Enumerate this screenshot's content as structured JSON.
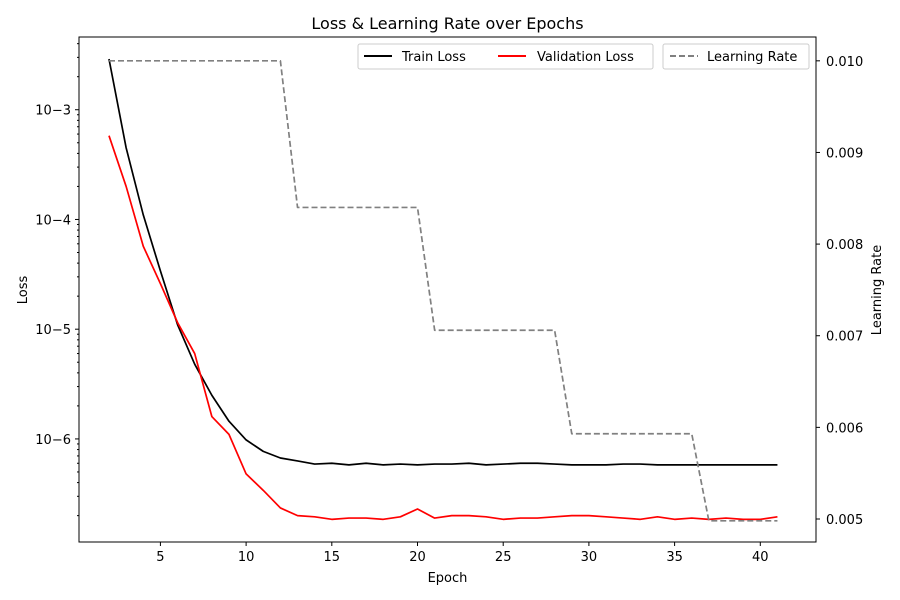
{
  "chart_data": {
    "type": "line",
    "title": "Loss & Learning Rate over Epochs",
    "xlabel": "Epoch",
    "ylabel": "Loss",
    "y2label": "Learning Rate",
    "xlim": [
      0.25,
      43.25
    ],
    "ylim": [
      1.15e-07,
      0.0046
    ],
    "yscale": "log",
    "y2lim": [
      0.004749,
      0.01026
    ],
    "y2scale": "linear",
    "x_ticks": [
      "5",
      "10",
      "15",
      "20",
      "25",
      "30",
      "35",
      "40"
    ],
    "y_ticks": [
      "10−6",
      "10−5",
      "10−4",
      "10−3"
    ],
    "y2_ticks": [
      "0.005",
      "0.006",
      "0.007",
      "0.008",
      "0.009",
      "0.010"
    ],
    "grid": false,
    "legend_position": "top-right",
    "x": [
      2,
      3,
      4,
      5,
      6,
      7,
      8,
      9,
      10,
      11,
      12,
      13,
      14,
      15,
      16,
      17,
      18,
      19,
      20,
      21,
      22,
      23,
      24,
      25,
      26,
      27,
      28,
      29,
      30,
      31,
      32,
      33,
      34,
      35,
      36,
      37,
      38,
      39,
      40,
      41
    ],
    "series": [
      {
        "name": "Train Loss",
        "axis": "left",
        "color": "#000000",
        "dash": "solid",
        "values": [
          0.0029,
          0.00045,
          0.00011,
          3.4e-05,
          1.1e-05,
          4.8e-06,
          2.5e-06,
          1.45e-06,
          9.8e-07,
          7.7e-07,
          6.7e-07,
          6.3e-07,
          5.9e-07,
          6e-07,
          5.8e-07,
          6e-07,
          5.8e-07,
          5.9e-07,
          5.8e-07,
          5.9e-07,
          5.9e-07,
          6e-07,
          5.8e-07,
          5.9e-07,
          6e-07,
          6e-07,
          5.9e-07,
          5.8e-07,
          5.8e-07,
          5.8e-07,
          5.9e-07,
          5.9e-07,
          5.8e-07,
          5.8e-07,
          5.8e-07,
          5.8e-07,
          5.8e-07,
          5.8e-07,
          5.8e-07,
          5.8e-07
        ]
      },
      {
        "name": "Validation Loss",
        "axis": "left",
        "color": "#ff0000",
        "dash": "solid",
        "values": [
          0.00058,
          0.0002,
          5.7e-05,
          2.6e-05,
          1.15e-05,
          6e-06,
          1.6e-06,
          1.1e-06,
          4.8e-07,
          3.4e-07,
          2.35e-07,
          2e-07,
          1.95e-07,
          1.85e-07,
          1.9e-07,
          1.9e-07,
          1.85e-07,
          1.95e-07,
          2.3e-07,
          1.9e-07,
          2e-07,
          2e-07,
          1.95e-07,
          1.85e-07,
          1.9e-07,
          1.9e-07,
          1.95e-07,
          2e-07,
          2e-07,
          1.95e-07,
          1.9e-07,
          1.85e-07,
          1.95e-07,
          1.85e-07,
          1.9e-07,
          1.85e-07,
          1.9e-07,
          1.85e-07,
          1.85e-07,
          1.95e-07
        ]
      },
      {
        "name": "Learning Rate",
        "axis": "right",
        "color": "#808080",
        "dash": "dashed",
        "values": [
          0.01,
          0.01,
          0.01,
          0.01,
          0.01,
          0.01,
          0.01,
          0.01,
          0.01,
          0.01,
          0.01,
          0.0084,
          0.0084,
          0.0084,
          0.0084,
          0.0084,
          0.0084,
          0.0084,
          0.0084,
          0.00706,
          0.00706,
          0.00706,
          0.00706,
          0.00706,
          0.00706,
          0.00706,
          0.00706,
          0.00593,
          0.00593,
          0.00593,
          0.00593,
          0.00593,
          0.00593,
          0.00593,
          0.00593,
          0.00498,
          0.00498,
          0.00498,
          0.00498,
          0.00498
        ]
      }
    ]
  }
}
